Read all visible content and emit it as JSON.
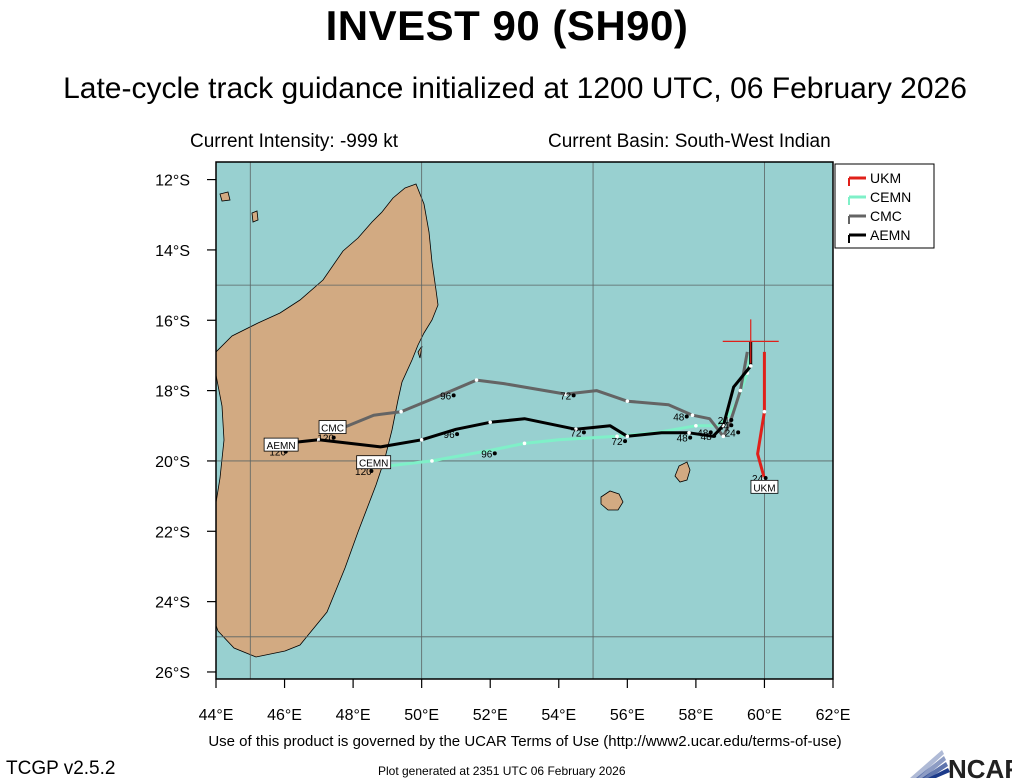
{
  "title": "INVEST 90 (SH90)",
  "subtitle": "Late-cycle track guidance initialized at 1200 UTC, 06 February 2026",
  "intensity": "Current Intensity: -999 kt",
  "basin": "Current Basin: South-West Indian",
  "footer": {
    "terms": "Use of this product is governed by the UCAR Terms of Use (http://www2.ucar.edu/terms-of-use)",
    "version": "TCGP v2.5.2",
    "generated": "Plot generated at 2351 UTC   06 February 2026",
    "logo": "NCAR"
  },
  "colors": {
    "ocean": "#98d0d0",
    "land": "#d2aa82",
    "UKM": "#e0201a",
    "CEMN": "#7ff0c8",
    "CMC": "#646464",
    "AEMN": "#000000"
  },
  "map": {
    "lon_range": [
      44,
      62
    ],
    "lat_range": [
      -26.2,
      -11.5
    ],
    "lon_ticks": [
      44,
      46,
      48,
      50,
      52,
      54,
      56,
      58,
      60,
      62
    ],
    "lat_ticks": [
      -12,
      -14,
      -16,
      -18,
      -20,
      -22,
      -24,
      -26
    ],
    "lon_tick_labels": [
      "44°E",
      "46°E",
      "48°E",
      "50°E",
      "52°E",
      "54°E",
      "56°E",
      "58°E",
      "60°E",
      "62°E"
    ],
    "lat_tick_labels": [
      "12°S",
      "14°S",
      "16°S",
      "18°S",
      "20°S",
      "22°S",
      "24°S",
      "26°S"
    ],
    "gridlines_lon": [
      45,
      50,
      55,
      60
    ],
    "gridlines_lat": [
      -15,
      -20,
      -25
    ],
    "legend_position": "top-right",
    "current_position": [
      59.6,
      -16.6
    ]
  },
  "tracks": [
    {
      "name": "UKM",
      "points": [
        [
          60.0,
          -16.9
        ],
        [
          60.0,
          -18.6
        ],
        [
          59.8,
          -19.8
        ],
        [
          60.0,
          -20.5
        ]
      ],
      "hour_labels": [
        {
          "text": "24",
          "at": [
            59.8,
            -20.6
          ]
        }
      ],
      "end_label": {
        "text": "UKM",
        "at": [
          60.0,
          -20.75
        ]
      }
    },
    {
      "name": "CEMN",
      "points": [
        [
          59.6,
          -16.9
        ],
        [
          59.5,
          -17.5
        ],
        [
          59.2,
          -18.3
        ],
        [
          58.9,
          -18.8
        ],
        [
          58.6,
          -19.0
        ],
        [
          58.0,
          -19.0
        ],
        [
          56.8,
          -19.2
        ],
        [
          55.7,
          -19.3
        ],
        [
          54.0,
          -19.4
        ],
        [
          53.0,
          -19.5
        ],
        [
          52.0,
          -19.7
        ],
        [
          50.3,
          -20.0
        ],
        [
          48.5,
          -20.2
        ]
      ],
      "hour_labels": [
        {
          "text": "24",
          "at": [
            58.8,
            -19.1
          ]
        },
        {
          "text": "48",
          "at": [
            58.2,
            -19.3
          ]
        },
        {
          "text": "72",
          "at": [
            55.7,
            -19.55
          ]
        },
        {
          "text": "96",
          "at": [
            51.9,
            -19.9
          ]
        },
        {
          "text": "120",
          "at": [
            48.3,
            -20.4
          ]
        }
      ],
      "end_label": {
        "text": "CEMN",
        "at": [
          48.6,
          -20.05
        ]
      }
    },
    {
      "name": "CMC",
      "points": [
        [
          59.5,
          -16.9
        ],
        [
          59.3,
          -18.0
        ],
        [
          59.0,
          -18.9
        ],
        [
          58.8,
          -19.3
        ],
        [
          58.4,
          -18.8
        ],
        [
          57.9,
          -18.7
        ],
        [
          57.2,
          -18.4
        ],
        [
          56.0,
          -18.3
        ],
        [
          55.1,
          -18.0
        ],
        [
          54.2,
          -18.1
        ],
        [
          52.4,
          -17.8
        ],
        [
          51.6,
          -17.7
        ],
        [
          50.4,
          -18.2
        ],
        [
          49.4,
          -18.6
        ],
        [
          48.6,
          -18.7
        ],
        [
          47.6,
          -19.1
        ]
      ],
      "hour_labels": [
        {
          "text": "24",
          "at": [
            58.8,
            -18.95
          ]
        },
        {
          "text": "48",
          "at": [
            57.5,
            -18.85
          ]
        },
        {
          "text": "72",
          "at": [
            54.2,
            -18.25
          ]
        },
        {
          "text": "96",
          "at": [
            50.7,
            -18.25
          ]
        },
        {
          "text": "120",
          "at": [
            47.2,
            -19.45
          ]
        }
      ],
      "end_label": {
        "text": "CMC",
        "at": [
          47.4,
          -19.05
        ]
      }
    },
    {
      "name": "AEMN",
      "points": [
        [
          59.6,
          -16.6
        ],
        [
          59.6,
          -17.3
        ],
        [
          59.1,
          -17.9
        ],
        [
          58.8,
          -19.0
        ],
        [
          58.5,
          -19.3
        ],
        [
          57.8,
          -19.2
        ],
        [
          57.0,
          -19.2
        ],
        [
          56.0,
          -19.3
        ],
        [
          55.5,
          -19.0
        ],
        [
          54.5,
          -19.1
        ],
        [
          53.0,
          -18.8
        ],
        [
          52.0,
          -18.9
        ],
        [
          51.0,
          -19.1
        ],
        [
          50.0,
          -19.4
        ],
        [
          48.8,
          -19.6
        ],
        [
          47.0,
          -19.4
        ],
        [
          46.0,
          -19.5
        ]
      ],
      "hour_labels": [
        {
          "text": "24",
          "at": [
            59.0,
            -19.3
          ]
        },
        {
          "text": "48",
          "at": [
            58.3,
            -19.4
          ]
        },
        {
          "text": "48",
          "at": [
            57.6,
            -19.45
          ]
        },
        {
          "text": "72",
          "at": [
            54.5,
            -19.3
          ]
        },
        {
          "text": "96",
          "at": [
            50.8,
            -19.35
          ]
        },
        {
          "text": "120",
          "at": [
            45.8,
            -19.85
          ]
        }
      ],
      "end_label": {
        "text": "AEMN",
        "at": [
          45.9,
          -19.55
        ]
      }
    }
  ]
}
